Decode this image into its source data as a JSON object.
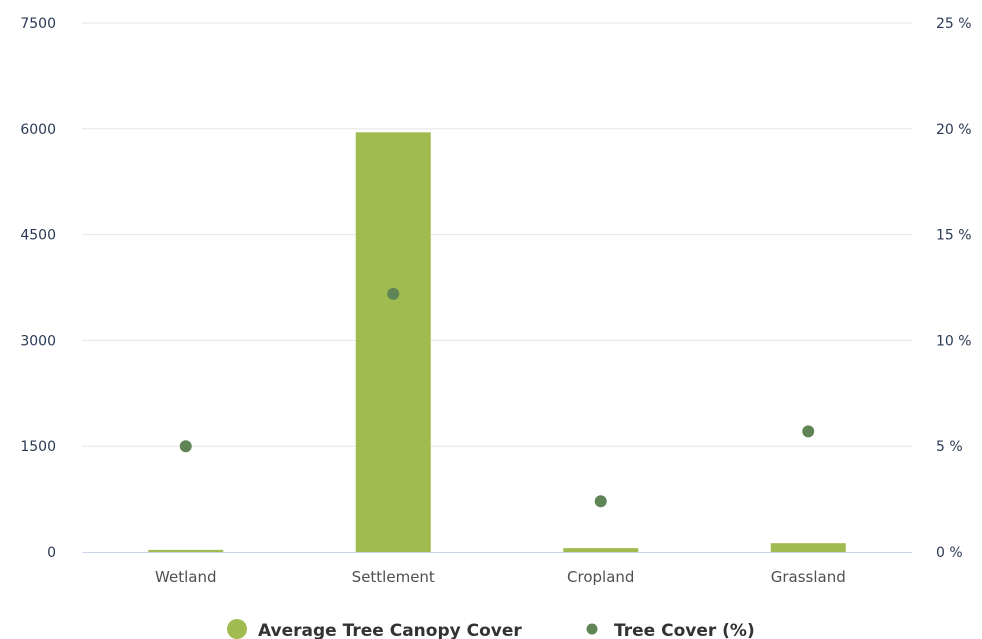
{
  "chart_data": {
    "type": "bar",
    "categories": [
      "Wetland",
      "Settlement",
      "Cropland",
      "Grassland"
    ],
    "series": [
      {
        "name": "Average Tree Canopy Cover",
        "type": "bar",
        "axis": "left",
        "color": "#a0bb50",
        "values": [
          30,
          5950,
          55,
          125
        ]
      },
      {
        "name": "Tree Cover (%)",
        "type": "scatter",
        "axis": "right",
        "color": "#5f8456",
        "values": [
          5.0,
          12.2,
          2.4,
          5.7
        ]
      }
    ],
    "y_left": {
      "ticks": [
        "0",
        "1500",
        "3000",
        "4500",
        "6000",
        "7500"
      ],
      "lim": [
        0,
        7500
      ]
    },
    "y_right": {
      "ticks": [
        "0 %",
        "5 %",
        "10 %",
        "15 %",
        "20 %",
        "25 %"
      ],
      "lim": [
        0,
        25
      ]
    },
    "grid": true,
    "legend_position": "bottom-center",
    "title": "",
    "xlabel": "",
    "ylabel": ""
  }
}
